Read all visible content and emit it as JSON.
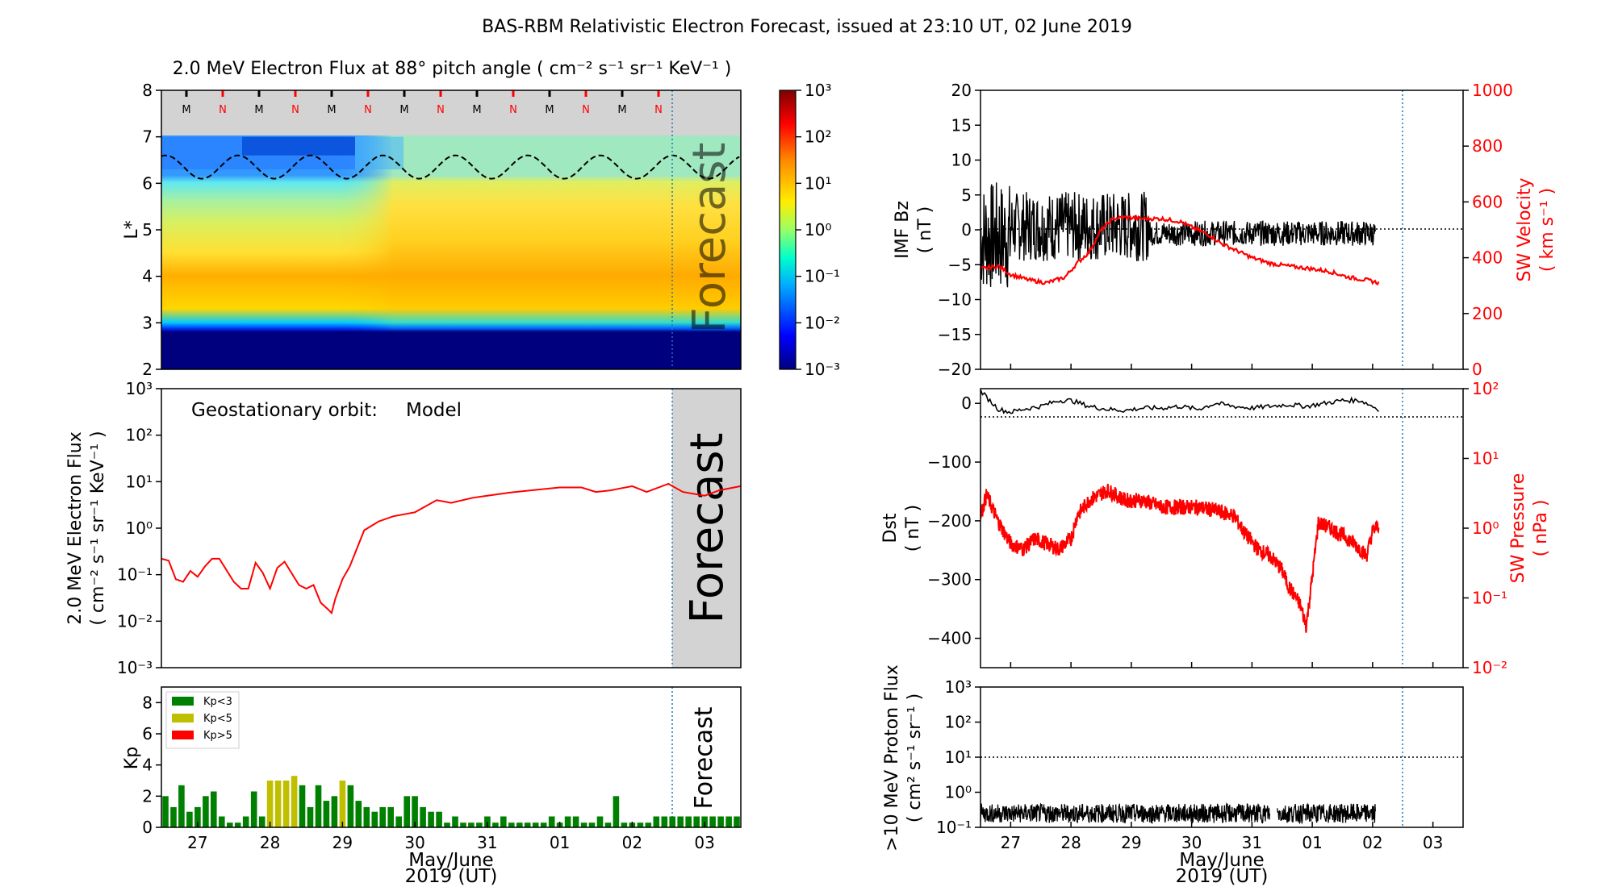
{
  "title": "BAS-RBM Relativistic Electron Forecast, issued at 23:10 UT, 02 June 2019",
  "colors": {
    "model": "#ff0000",
    "forecast_shade": "#d3d3d3",
    "kp_low": "#008000",
    "kp_mid": "#bfbf00",
    "kp_high": "#ff0000",
    "dotted_line": "#1f77b4"
  },
  "chart_data": [
    {
      "id": "lstar_flux",
      "type": "heatmap",
      "title": "2.0 MeV Electron Flux at 88$^\\circ$ pitch angle ( cm$^{-2}$ s$^{-1}$ sr$^{-1}$ KeV$^{-1}$ )",
      "title_display": "2.0 MeV Electron Flux at 88° pitch angle ( cm⁻² s⁻¹ sr⁻¹ KeV⁻¹ )",
      "ylabel": "L*",
      "ylim": [
        2,
        8
      ],
      "yticks": [
        "2",
        "3",
        "4",
        "5",
        "6",
        "7",
        "8"
      ],
      "xlim_days": [
        "26 May 12:00",
        "03 June 12:00"
      ],
      "forecast_label": "Forecast",
      "mn_markers": [
        "M",
        "N",
        "M",
        "N",
        "M",
        "N",
        "M",
        "N",
        "M",
        "N",
        "M",
        "N",
        "M",
        "N"
      ],
      "colorbar": {
        "scale": "log",
        "range": [
          0.001,
          1000
        ],
        "ticks": [
          "10⁻³",
          "10⁻²",
          "10⁻¹",
          "10⁰",
          "10¹",
          "10²",
          "10³"
        ]
      },
      "magnetopause_lstar_range": [
        6.1,
        6.6
      ]
    },
    {
      "id": "geo_flux",
      "type": "line",
      "annotation_label": "Geostationary orbit:",
      "annotation_value": "Model",
      "ylabel_line1": "2.0 MeV Electron Flux",
      "ylabel_line2": "( cm⁻² s⁻¹ sr⁻¹ KeV⁻¹ )",
      "yscale": "log",
      "ylim": [
        0.001,
        1000
      ],
      "yticks": [
        "10⁻³",
        "10⁻²",
        "10⁻¹",
        "10⁰",
        "10¹",
        "10²",
        "10³"
      ],
      "forecast_label": "Forecast",
      "series": [
        {
          "name": "Model",
          "x_days": [
            26.5,
            26.6,
            26.7,
            26.8,
            26.9,
            27.0,
            27.1,
            27.2,
            27.3,
            27.5,
            27.6,
            27.7,
            27.8,
            27.9,
            28.0,
            28.1,
            28.2,
            28.4,
            28.5,
            28.6,
            28.7,
            28.8,
            28.85,
            28.9,
            29.0,
            29.1,
            29.3,
            29.5,
            29.7,
            30.0,
            30.3,
            30.5,
            30.8,
            31.0,
            31.3,
            31.6,
            32.0,
            32.3,
            32.5,
            32.7,
            33.0,
            33.2,
            33.5,
            33.7,
            34.0,
            34.2,
            34.5
          ],
          "values": [
            0.22,
            0.2,
            0.08,
            0.07,
            0.12,
            0.09,
            0.15,
            0.22,
            0.22,
            0.07,
            0.05,
            0.05,
            0.18,
            0.11,
            0.05,
            0.14,
            0.19,
            0.06,
            0.05,
            0.06,
            0.025,
            0.018,
            0.015,
            0.03,
            0.08,
            0.15,
            0.9,
            1.4,
            1.8,
            2.2,
            4.0,
            3.5,
            4.5,
            5.0,
            5.8,
            6.5,
            7.5,
            7.5,
            6.0,
            6.5,
            8.0,
            6.0,
            9.0,
            6.0,
            5.0,
            6.5,
            8.0
          ]
        }
      ]
    },
    {
      "id": "kp",
      "type": "bar",
      "ylabel": "Kp",
      "ylim": [
        0,
        9
      ],
      "yticks": [
        "0",
        "2",
        "4",
        "6",
        "8"
      ],
      "xlabel": "May/June",
      "xlabel2": "2019 (UT)",
      "x_tick_labels": [
        "27",
        "28",
        "29",
        "30",
        "31",
        "01",
        "02",
        "03"
      ],
      "forecast_label": "Forecast",
      "legend": [
        {
          "name": "Kp<3",
          "color": "#008000"
        },
        {
          "name": "Kp<5",
          "color": "#bfbf00"
        },
        {
          "name": "Kp>5",
          "color": "#ff0000"
        }
      ],
      "values": [
        2.0,
        1.3,
        2.7,
        1.0,
        1.3,
        2.0,
        2.3,
        0.7,
        0.3,
        0.3,
        0.7,
        2.3,
        0.7,
        3.0,
        3.0,
        3.0,
        3.3,
        2.7,
        1.3,
        2.7,
        1.7,
        2.0,
        3.0,
        2.7,
        1.7,
        1.3,
        1.0,
        1.3,
        1.3,
        0.7,
        2.0,
        2.0,
        1.3,
        1.0,
        1.0,
        0.3,
        0.7,
        0.3,
        0.3,
        0.3,
        0.7,
        0.3,
        0.7,
        0.3,
        0.3,
        0.3,
        0.3,
        0.3,
        0.7,
        0.3,
        0.7,
        0.7,
        0.3,
        0.3,
        0.7,
        0.3,
        2.0,
        0.3,
        0.3,
        0.3,
        0.3,
        0.7,
        0.7,
        0.7,
        0.7,
        0.7,
        0.7,
        0.7,
        0.7,
        0.7,
        0.7,
        0.7
      ]
    },
    {
      "id": "imf_sw",
      "type": "line",
      "ylabel_left_1": "IMF Bz",
      "ylabel_left_2": "( nT )",
      "ylim_left": [
        -20,
        20
      ],
      "yticks_left": [
        "−20",
        "−15",
        "−10",
        "−5",
        "0",
        "5",
        "10",
        "15",
        "20"
      ],
      "ylabel_right_1": "SW Velocity",
      "ylabel_right_2": "( km s⁻¹ )",
      "ylim_right": [
        0,
        1000
      ],
      "yticks_right": [
        "0",
        "200",
        "400",
        "600",
        "800",
        "1000"
      ],
      "sw_velocity_days": [
        26.5,
        26.8,
        27.0,
        27.3,
        27.6,
        27.9,
        28.1,
        28.3,
        28.5,
        28.7,
        28.9,
        29.2,
        29.5,
        29.8,
        30.0,
        30.3,
        30.5,
        30.8,
        31.0,
        31.3,
        31.6,
        32.0,
        32.3,
        32.6,
        32.9,
        33.1
      ],
      "sw_velocity": [
        360,
        370,
        340,
        320,
        310,
        330,
        380,
        420,
        500,
        540,
        545,
        540,
        540,
        530,
        510,
        480,
        450,
        420,
        400,
        380,
        370,
        360,
        350,
        330,
        320,
        310
      ]
    },
    {
      "id": "dst_pressure",
      "type": "line",
      "ylabel_left_1": "Dst",
      "ylabel_left_2": "( nT )",
      "ylim_left": [
        -450,
        25
      ],
      "yticks_left": [
        "−400",
        "−300",
        "−200",
        "−100",
        "0"
      ],
      "ylabel_right_1": "SW Pressure",
      "ylabel_right_2": "( nPa )",
      "ylim_right": [
        0.01,
        100
      ],
      "yticks_right": [
        "10⁻²",
        "10⁻¹",
        "10⁰",
        "10¹",
        "10²"
      ],
      "dst_days": [
        26.5,
        26.6,
        26.8,
        27.0,
        27.2,
        27.5,
        27.8,
        28.0,
        28.3,
        28.6,
        28.9,
        29.2,
        29.5,
        29.8,
        30.1,
        30.4,
        30.7,
        31.0,
        31.3,
        31.6,
        31.9,
        32.2,
        32.5,
        32.8,
        33.1
      ],
      "dst": [
        22,
        10,
        -10,
        -15,
        -10,
        -5,
        5,
        5,
        -5,
        -10,
        -12,
        -8,
        -8,
        -5,
        -10,
        0,
        -5,
        -8,
        -5,
        -2,
        -5,
        0,
        5,
        5,
        -10
      ],
      "pressure_days": [
        26.5,
        26.6,
        26.8,
        27.0,
        27.2,
        27.4,
        27.6,
        27.8,
        28.0,
        28.1,
        28.3,
        28.6,
        28.9,
        29.2,
        29.5,
        29.8,
        30.1,
        30.4,
        30.7,
        30.9,
        31.1,
        31.3,
        31.5,
        31.6,
        31.8,
        31.9,
        32.0,
        32.1,
        32.3,
        32.5,
        32.7,
        32.9,
        33.0,
        33.1
      ],
      "pressure": [
        1.5,
        3.0,
        1.2,
        0.6,
        0.5,
        0.7,
        0.6,
        0.5,
        0.7,
        1.5,
        2.5,
        3.5,
        2.5,
        2.5,
        2.0,
        2.0,
        2.0,
        1.8,
        1.5,
        0.8,
        0.5,
        0.4,
        0.25,
        0.15,
        0.08,
        0.04,
        0.2,
        1.2,
        1.0,
        0.8,
        0.6,
        0.4,
        0.9,
        1.1
      ]
    },
    {
      "id": "proton",
      "type": "line",
      "ylabel_line1": ">10 MeV Proton Flux",
      "ylabel_line2": "( cm² s⁻¹ sr⁻¹ )",
      "yscale": "log",
      "ylim": [
        0.1,
        1000
      ],
      "yticks": [
        "10⁻¹",
        "10⁰",
        "10¹",
        "10²",
        "10³"
      ],
      "threshold": 10,
      "xlabel": "May/June",
      "xlabel2": "2019 (UT)",
      "x_tick_labels": [
        "27",
        "28",
        "29",
        "30",
        "31",
        "01",
        "02",
        "03"
      ],
      "typical_flux": 0.25
    }
  ]
}
